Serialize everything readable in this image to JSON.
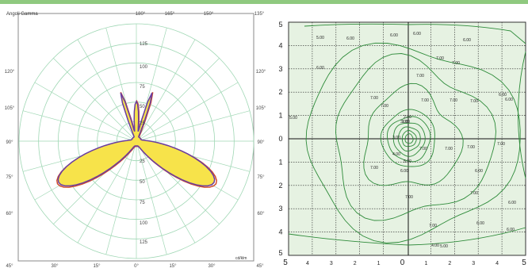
{
  "colors": {
    "top_band": "#8fc97f",
    "polar_fill": "#f7e34a",
    "polar_outline": "#6a3ea0",
    "polar_outline2": "#d04a2a",
    "polar_grid": "#9fd7b4",
    "iso_bg": "#e6f2e2",
    "iso_line": "#2e8b3a"
  },
  "polar": {
    "title": "Angoli Gamma",
    "unit": "cd/klm",
    "top_angles": [
      "180°",
      "165°",
      "150°",
      "135°"
    ],
    "left_angles": [
      "120°",
      "105°",
      "90°",
      "75°",
      "60°"
    ],
    "right_angles": [
      "120°",
      "105°",
      "90°",
      "75°",
      "60°"
    ],
    "bottom_angles": [
      "45°",
      "30°",
      "15°",
      "0°",
      "15°",
      "30°",
      "45°"
    ],
    "radial_labels_up": [
      "125",
      "100",
      "75",
      "50",
      "25"
    ],
    "radial_labels_down": [
      "25",
      "50",
      "75",
      "100",
      "125"
    ]
  },
  "isolux": {
    "y_labels": [
      "5",
      "4",
      "3",
      "2",
      "1",
      "0",
      "1",
      "2",
      "3",
      "4",
      "5"
    ],
    "x_labels": [
      "5",
      "4",
      "3",
      "2",
      "1",
      "0",
      "1",
      "2",
      "3",
      "4",
      "5"
    ],
    "contour_labels": [
      "5.00",
      "6.00",
      "6.00",
      "6.00",
      "6.00",
      "7.00",
      "6.00",
      "7.00",
      "7.00",
      "6.00",
      "7.00",
      "7.00",
      "7.00",
      "7.00",
      "7.00",
      "6.00",
      "5.00",
      "3.00",
      "2.00",
      "1.00",
      "3.00",
      "4.00",
      "5.00",
      "6.00",
      "7.00",
      "7.00",
      "7.00",
      "7.00",
      "6.00",
      "7.00",
      "7.00",
      "7.00",
      "7.00",
      "6.00",
      "6.00",
      "6.00",
      "5.00",
      "4.00"
    ]
  }
}
